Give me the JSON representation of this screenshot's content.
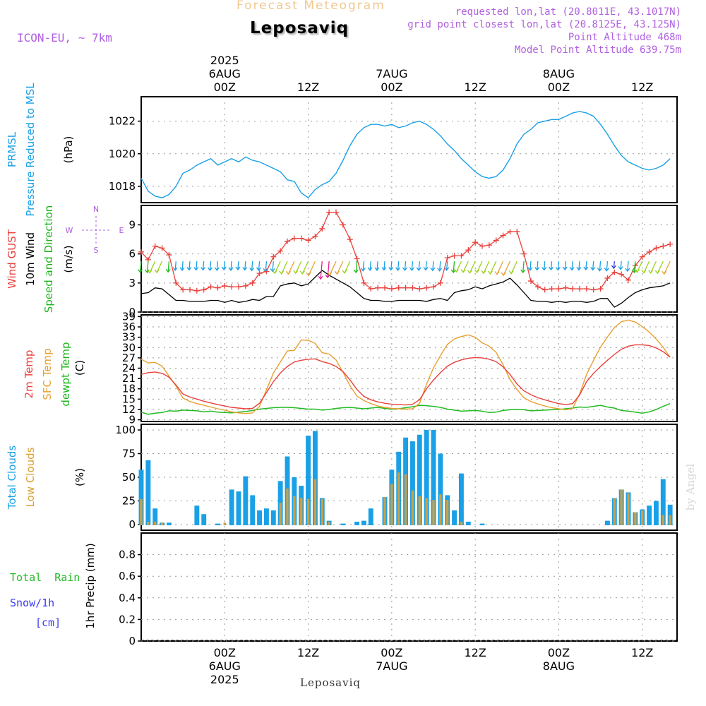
{
  "header": {
    "suptitle": "Forecast Meteogram",
    "title": "Leposaviq",
    "model": "ICON-EU, ~ 7km",
    "info": [
      "requested lon,lat (20.8011E, 43.1017N)",
      "grid point closest lon,lat (20.8125E, 43.125N)",
      "Point Altitude 468m",
      "Model Point Altitude 639.75m"
    ],
    "credit": "by Angel",
    "bottom_label": "Leposaviq"
  },
  "time_axis": {
    "top": [
      {
        "hour": 12,
        "lines": [
          "2025",
          "6AUG",
          "00Z"
        ]
      },
      {
        "hour": 24,
        "lines": [
          "12Z"
        ]
      },
      {
        "hour": 36,
        "lines": [
          "7AUG",
          "00Z"
        ]
      },
      {
        "hour": 48,
        "lines": [
          "12Z"
        ]
      },
      {
        "hour": 60,
        "lines": [
          "8AUG",
          "00Z"
        ]
      },
      {
        "hour": 72,
        "lines": [
          "12Z"
        ]
      }
    ],
    "bottom": [
      {
        "hour": 12,
        "lines": [
          "00Z",
          "6AUG",
          "2025"
        ]
      },
      {
        "hour": 24,
        "lines": [
          "12Z"
        ]
      },
      {
        "hour": 36,
        "lines": [
          "00Z",
          "7AUG"
        ]
      },
      {
        "hour": 48,
        "lines": [
          "12Z"
        ]
      },
      {
        "hour": 60,
        "lines": [
          "00Z",
          "8AUG"
        ]
      },
      {
        "hour": 72,
        "lines": [
          "12Z"
        ]
      }
    ]
  },
  "panel_labels": {
    "p1": [
      {
        "text": "PRMSL",
        "color": "#1aa0e6"
      },
      {
        "text": "Pressure Reduced to MSL",
        "color": "#1aa0e6"
      },
      {
        "text": "(hPa)",
        "color": "#000000"
      }
    ],
    "p2": [
      {
        "text": "Wind GUST",
        "color": "#e8413c"
      },
      {
        "text": "10m Wind",
        "color": "#000000"
      },
      {
        "text": "Speed and Direction",
        "color": "#1bb51b"
      },
      {
        "text": "(m/s)",
        "color": "#000000"
      }
    ],
    "p3": [
      {
        "text": "2m Temp",
        "color": "#e8413c"
      },
      {
        "text": "SFC Temp",
        "color": "#e8a030"
      },
      {
        "text": "dewpt Temp",
        "color": "#1bb51b"
      },
      {
        "text": "(C)",
        "color": "#000000"
      }
    ],
    "p4": [
      {
        "text": "Total Clouds",
        "color": "#1aa0e6"
      },
      {
        "text": "Low Clouds",
        "color": "#d9a030"
      },
      {
        "text": "(%)",
        "color": "#000000"
      }
    ],
    "p5_rot": "1hr Precip (mm)",
    "p5_total": "Total  Rain",
    "p5_snow": "Snow/1h",
    "p5_cm": "[cm]",
    "compass": {
      "n": "N",
      "s": "S",
      "w": "W",
      "e": "E"
    }
  },
  "colors": {
    "pressure": "#1aa0e6",
    "gust": "#e8413c",
    "wind": "#000000",
    "temp2m": "#e8413c",
    "sfc": "#e8a030",
    "dewpt": "#22bb22",
    "totalCloud": "#1aa0e6",
    "lowCloud": "#c8a04a",
    "label_purple": "#b060e0"
  },
  "chart_data": [
    {
      "type": "line",
      "name": "PRMSL",
      "x_hours": [
        0,
        1,
        2,
        3,
        4,
        5,
        6,
        7,
        8,
        9,
        10,
        11,
        12,
        13,
        14,
        15,
        16,
        17,
        18,
        19,
        20,
        21,
        22,
        23,
        24,
        25,
        26,
        27,
        28,
        29,
        30,
        31,
        32,
        33,
        34,
        35,
        36,
        37,
        38,
        39,
        40,
        41,
        42,
        43,
        44,
        45,
        46,
        47,
        48,
        49,
        50,
        51,
        52,
        53,
        54,
        55,
        56,
        57,
        58,
        59,
        60,
        61,
        62,
        63,
        64,
        65,
        66,
        67,
        68,
        69,
        70,
        71,
        72,
        73,
        74,
        75,
        76
      ],
      "values": [
        1018.5,
        1017.7,
        1017.4,
        1017.3,
        1017.5,
        1018.0,
        1018.8,
        1019.0,
        1019.3,
        1019.5,
        1019.7,
        1019.3,
        1019.5,
        1019.7,
        1019.5,
        1019.8,
        1019.6,
        1019.5,
        1019.3,
        1019.1,
        1018.9,
        1018.4,
        1018.3,
        1017.6,
        1017.3,
        1017.8,
        1018.1,
        1018.3,
        1018.8,
        1019.6,
        1020.5,
        1021.2,
        1021.6,
        1021.8,
        1021.8,
        1021.7,
        1021.8,
        1021.6,
        1021.7,
        1021.9,
        1022.0,
        1021.8,
        1021.5,
        1021.1,
        1020.6,
        1020.2,
        1019.7,
        1019.3,
        1018.9,
        1018.6,
        1018.5,
        1018.6,
        1019.0,
        1019.7,
        1020.6,
        1021.2,
        1021.5,
        1021.9,
        1022.0,
        1022.1,
        1022.1,
        1022.3,
        1022.5,
        1022.6,
        1022.5,
        1022.3,
        1021.8,
        1021.2,
        1020.5,
        1019.9,
        1019.5,
        1019.3,
        1019.1,
        1019.0,
        1019.1,
        1019.3,
        1019.7
      ],
      "ylim": [
        1017,
        1023.5
      ],
      "yticks": [
        1018,
        1020,
        1022
      ]
    },
    {
      "type": "line",
      "name": "Wind",
      "x_hours": [
        0,
        1,
        2,
        3,
        4,
        5,
        6,
        7,
        8,
        9,
        10,
        11,
        12,
        13,
        14,
        15,
        16,
        17,
        18,
        19,
        20,
        21,
        22,
        23,
        24,
        25,
        26,
        27,
        28,
        29,
        30,
        31,
        32,
        33,
        34,
        35,
        36,
        37,
        38,
        39,
        40,
        41,
        42,
        43,
        44,
        45,
        46,
        47,
        48,
        49,
        50,
        51,
        52,
        53,
        54,
        55,
        56,
        57,
        58,
        59,
        60,
        61,
        62,
        63,
        64,
        65,
        66,
        67,
        68,
        69,
        70,
        71,
        72,
        73,
        74,
        75,
        76
      ],
      "gust": [
        6.2,
        5.4,
        6.8,
        6.6,
        5.9,
        3.0,
        2.3,
        2.3,
        2.2,
        2.3,
        2.6,
        2.5,
        2.7,
        2.6,
        2.6,
        2.7,
        3.0,
        4.0,
        4.2,
        5.7,
        6.3,
        7.3,
        7.6,
        7.6,
        7.4,
        7.8,
        8.6,
        10.3,
        10.3,
        9.0,
        7.5,
        5.5,
        3.0,
        2.4,
        2.5,
        2.5,
        2.4,
        2.5,
        2.5,
        2.5,
        2.4,
        2.5,
        2.6,
        3.0,
        5.6,
        5.8,
        5.8,
        6.4,
        7.2,
        6.8,
        6.9,
        7.4,
        7.9,
        8.3,
        8.3,
        6.0,
        3.2,
        2.6,
        2.3,
        2.4,
        2.4,
        2.5,
        2.4,
        2.4,
        2.4,
        2.3,
        2.4,
        3.5,
        4.1,
        3.9,
        3.3,
        4.8,
        5.7,
        6.2,
        6.6,
        6.8,
        7.0
      ],
      "speed": [
        1.9,
        2.0,
        2.5,
        2.4,
        1.8,
        1.2,
        1.2,
        1.1,
        1.1,
        1.1,
        1.2,
        1.2,
        1.0,
        1.2,
        1.0,
        1.1,
        1.3,
        1.2,
        1.6,
        1.6,
        2.7,
        2.9,
        3.0,
        2.7,
        2.9,
        3.6,
        4.3,
        3.8,
        3.4,
        3.0,
        2.6,
        2.0,
        1.4,
        1.2,
        1.2,
        1.1,
        1.1,
        1.2,
        1.2,
        1.2,
        1.2,
        1.1,
        1.3,
        1.4,
        1.2,
        2.0,
        2.2,
        2.3,
        2.6,
        2.4,
        2.7,
        2.9,
        3.1,
        3.5,
        2.8,
        2.0,
        1.2,
        1.1,
        1.1,
        1.0,
        1.1,
        1.0,
        1.1,
        1.1,
        1.0,
        1.1,
        1.4,
        1.4,
        0.5,
        0.9,
        1.5,
        2.0,
        2.3,
        2.5,
        2.6,
        2.7,
        3.0
      ],
      "ylim": [
        0,
        11
      ],
      "yticks": [
        0,
        3,
        6,
        9
      ],
      "arrow_colors_note": "color by speed"
    },
    {
      "type": "line",
      "name": "Temperature",
      "x_hours": [
        0,
        1,
        2,
        3,
        4,
        5,
        6,
        7,
        8,
        9,
        10,
        11,
        12,
        13,
        14,
        15,
        16,
        17,
        18,
        19,
        20,
        21,
        22,
        23,
        24,
        25,
        26,
        27,
        28,
        29,
        30,
        31,
        32,
        33,
        34,
        35,
        36,
        37,
        38,
        39,
        40,
        41,
        42,
        43,
        44,
        45,
        46,
        47,
        48,
        49,
        50,
        51,
        52,
        53,
        54,
        55,
        56,
        57,
        58,
        59,
        60,
        61,
        62,
        63,
        64,
        65,
        66,
        67,
        68,
        69,
        70,
        71,
        72,
        73,
        74,
        75,
        76
      ],
      "temp2m": [
        22.2,
        22.7,
        22.9,
        22.5,
        21.4,
        19.1,
        16.5,
        15.6,
        15.0,
        14.4,
        13.9,
        13.4,
        13.0,
        12.6,
        12.4,
        12.2,
        12.3,
        13.8,
        16.9,
        20.1,
        22.6,
        24.5,
        25.8,
        26.3,
        26.6,
        26.7,
        25.9,
        25.4,
        24.5,
        23.0,
        20.6,
        17.8,
        15.8,
        14.8,
        14.2,
        13.8,
        13.5,
        13.4,
        13.3,
        13.5,
        14.8,
        18.0,
        20.6,
        22.7,
        24.6,
        25.7,
        26.4,
        26.9,
        27.1,
        27.0,
        26.6,
        25.9,
        24.4,
        22.2,
        19.4,
        17.4,
        16.3,
        15.4,
        14.8,
        14.2,
        13.7,
        13.4,
        13.7,
        16.2,
        20.1,
        22.5,
        24.5,
        26.3,
        28.0,
        29.5,
        30.4,
        30.8,
        30.8,
        30.6,
        29.9,
        28.8,
        27.2
      ],
      "sfc": [
        26.6,
        25.5,
        25.7,
        24.6,
        21.7,
        18.8,
        15.3,
        14.3,
        13.7,
        13.2,
        12.7,
        12.2,
        11.8,
        11.3,
        11.0,
        10.8,
        11.0,
        12.9,
        17.7,
        22.6,
        25.8,
        29.0,
        29.2,
        32.2,
        32.1,
        31.2,
        28.5,
        28.1,
        26.4,
        22.8,
        18.9,
        15.9,
        14.6,
        13.7,
        13.0,
        12.6,
        12.3,
        12.2,
        12.1,
        12.2,
        13.8,
        19.3,
        24.1,
        27.7,
        30.9,
        32.5,
        33.2,
        33.7,
        33.0,
        31.4,
        30.4,
        28.6,
        25.0,
        20.7,
        17.8,
        15.4,
        14.3,
        13.6,
        13.0,
        12.5,
        12.2,
        11.9,
        12.3,
        16.5,
        22.2,
        26.3,
        30.1,
        33.1,
        35.8,
        37.5,
        38.0,
        37.4,
        36.1,
        34.5,
        32.5,
        30.1,
        27.2
      ],
      "dewpt": [
        11.2,
        10.6,
        10.9,
        11.1,
        11.6,
        11.5,
        11.8,
        11.7,
        11.6,
        11.3,
        11.5,
        11.2,
        11.1,
        11.0,
        11.2,
        11.4,
        11.7,
        12.1,
        12.3,
        12.5,
        12.6,
        12.6,
        12.5,
        12.3,
        12.1,
        12.1,
        11.8,
        12.0,
        12.3,
        12.5,
        12.6,
        12.4,
        12.2,
        12.4,
        12.6,
        12.3,
        12.1,
        12.2,
        12.5,
        12.8,
        13.2,
        13.1,
        12.9,
        12.6,
        12.1,
        11.8,
        11.5,
        11.6,
        11.7,
        11.5,
        11.1,
        11.2,
        11.7,
        11.9,
        12.0,
        11.9,
        11.6,
        11.7,
        11.8,
        11.9,
        12.0,
        12.2,
        12.4,
        12.7,
        12.6,
        12.9,
        13.2,
        12.7,
        12.4,
        11.7,
        11.5,
        11.2,
        10.9,
        11.3,
        12.0,
        12.9,
        13.7
      ],
      "ylim": [
        8.5,
        39.5
      ],
      "yticks": [
        9,
        12,
        15,
        18,
        21,
        24,
        27,
        30,
        33,
        36,
        39
      ]
    },
    {
      "type": "bar",
      "name": "Clouds",
      "x_hours": [
        0,
        1,
        2,
        3,
        4,
        5,
        6,
        7,
        8,
        9,
        10,
        11,
        12,
        13,
        14,
        15,
        16,
        17,
        18,
        19,
        20,
        21,
        22,
        23,
        24,
        25,
        26,
        27,
        28,
        29,
        30,
        31,
        32,
        33,
        34,
        35,
        36,
        37,
        38,
        39,
        40,
        41,
        42,
        43,
        44,
        45,
        46,
        47,
        48,
        49,
        50,
        51,
        52,
        53,
        54,
        55,
        56,
        57,
        58,
        59,
        60,
        61,
        62,
        63,
        64,
        65,
        66,
        67,
        68,
        69,
        70,
        71,
        72,
        73,
        74,
        75,
        76
      ],
      "total": [
        58,
        68,
        17,
        2,
        2,
        0,
        0,
        0,
        20,
        11,
        0,
        1,
        0,
        37,
        35,
        51,
        31,
        15,
        17,
        15,
        46,
        72,
        50,
        41,
        94,
        99,
        28,
        4,
        0,
        1,
        0,
        3,
        4,
        17,
        0,
        29,
        58,
        77,
        92,
        88,
        95,
        100,
        100,
        75,
        31,
        15,
        54,
        3,
        0,
        1,
        0,
        0,
        0,
        0,
        0,
        0,
        0,
        0,
        0,
        0,
        0,
        0,
        0,
        0,
        0,
        0,
        0,
        4,
        28,
        37,
        34,
        13,
        16,
        20,
        25,
        48,
        21
      ],
      "low": [
        27,
        3,
        3,
        2,
        0,
        0,
        0,
        0,
        0,
        0,
        0,
        0,
        2,
        0,
        0,
        0,
        0,
        0,
        0,
        0,
        23,
        38,
        30,
        28,
        27,
        48,
        27,
        3,
        0,
        0,
        0,
        0,
        0,
        0,
        0,
        29,
        43,
        55,
        53,
        36,
        30,
        28,
        26,
        32,
        26,
        0,
        3,
        0,
        0,
        0,
        0,
        0,
        0,
        0,
        0,
        0,
        0,
        0,
        0,
        0,
        0,
        0,
        0,
        0,
        0,
        0,
        0,
        0,
        28,
        37,
        33,
        13,
        15,
        0,
        0,
        10,
        10
      ],
      "ylim": [
        -6,
        106
      ],
      "yticks": [
        0,
        25,
        50,
        75,
        100
      ]
    },
    {
      "type": "bar",
      "name": "Precip",
      "values": [],
      "ylim": [
        0,
        1.0
      ],
      "yticks": [
        0,
        0.2,
        0.4,
        0.6,
        0.8
      ]
    }
  ]
}
